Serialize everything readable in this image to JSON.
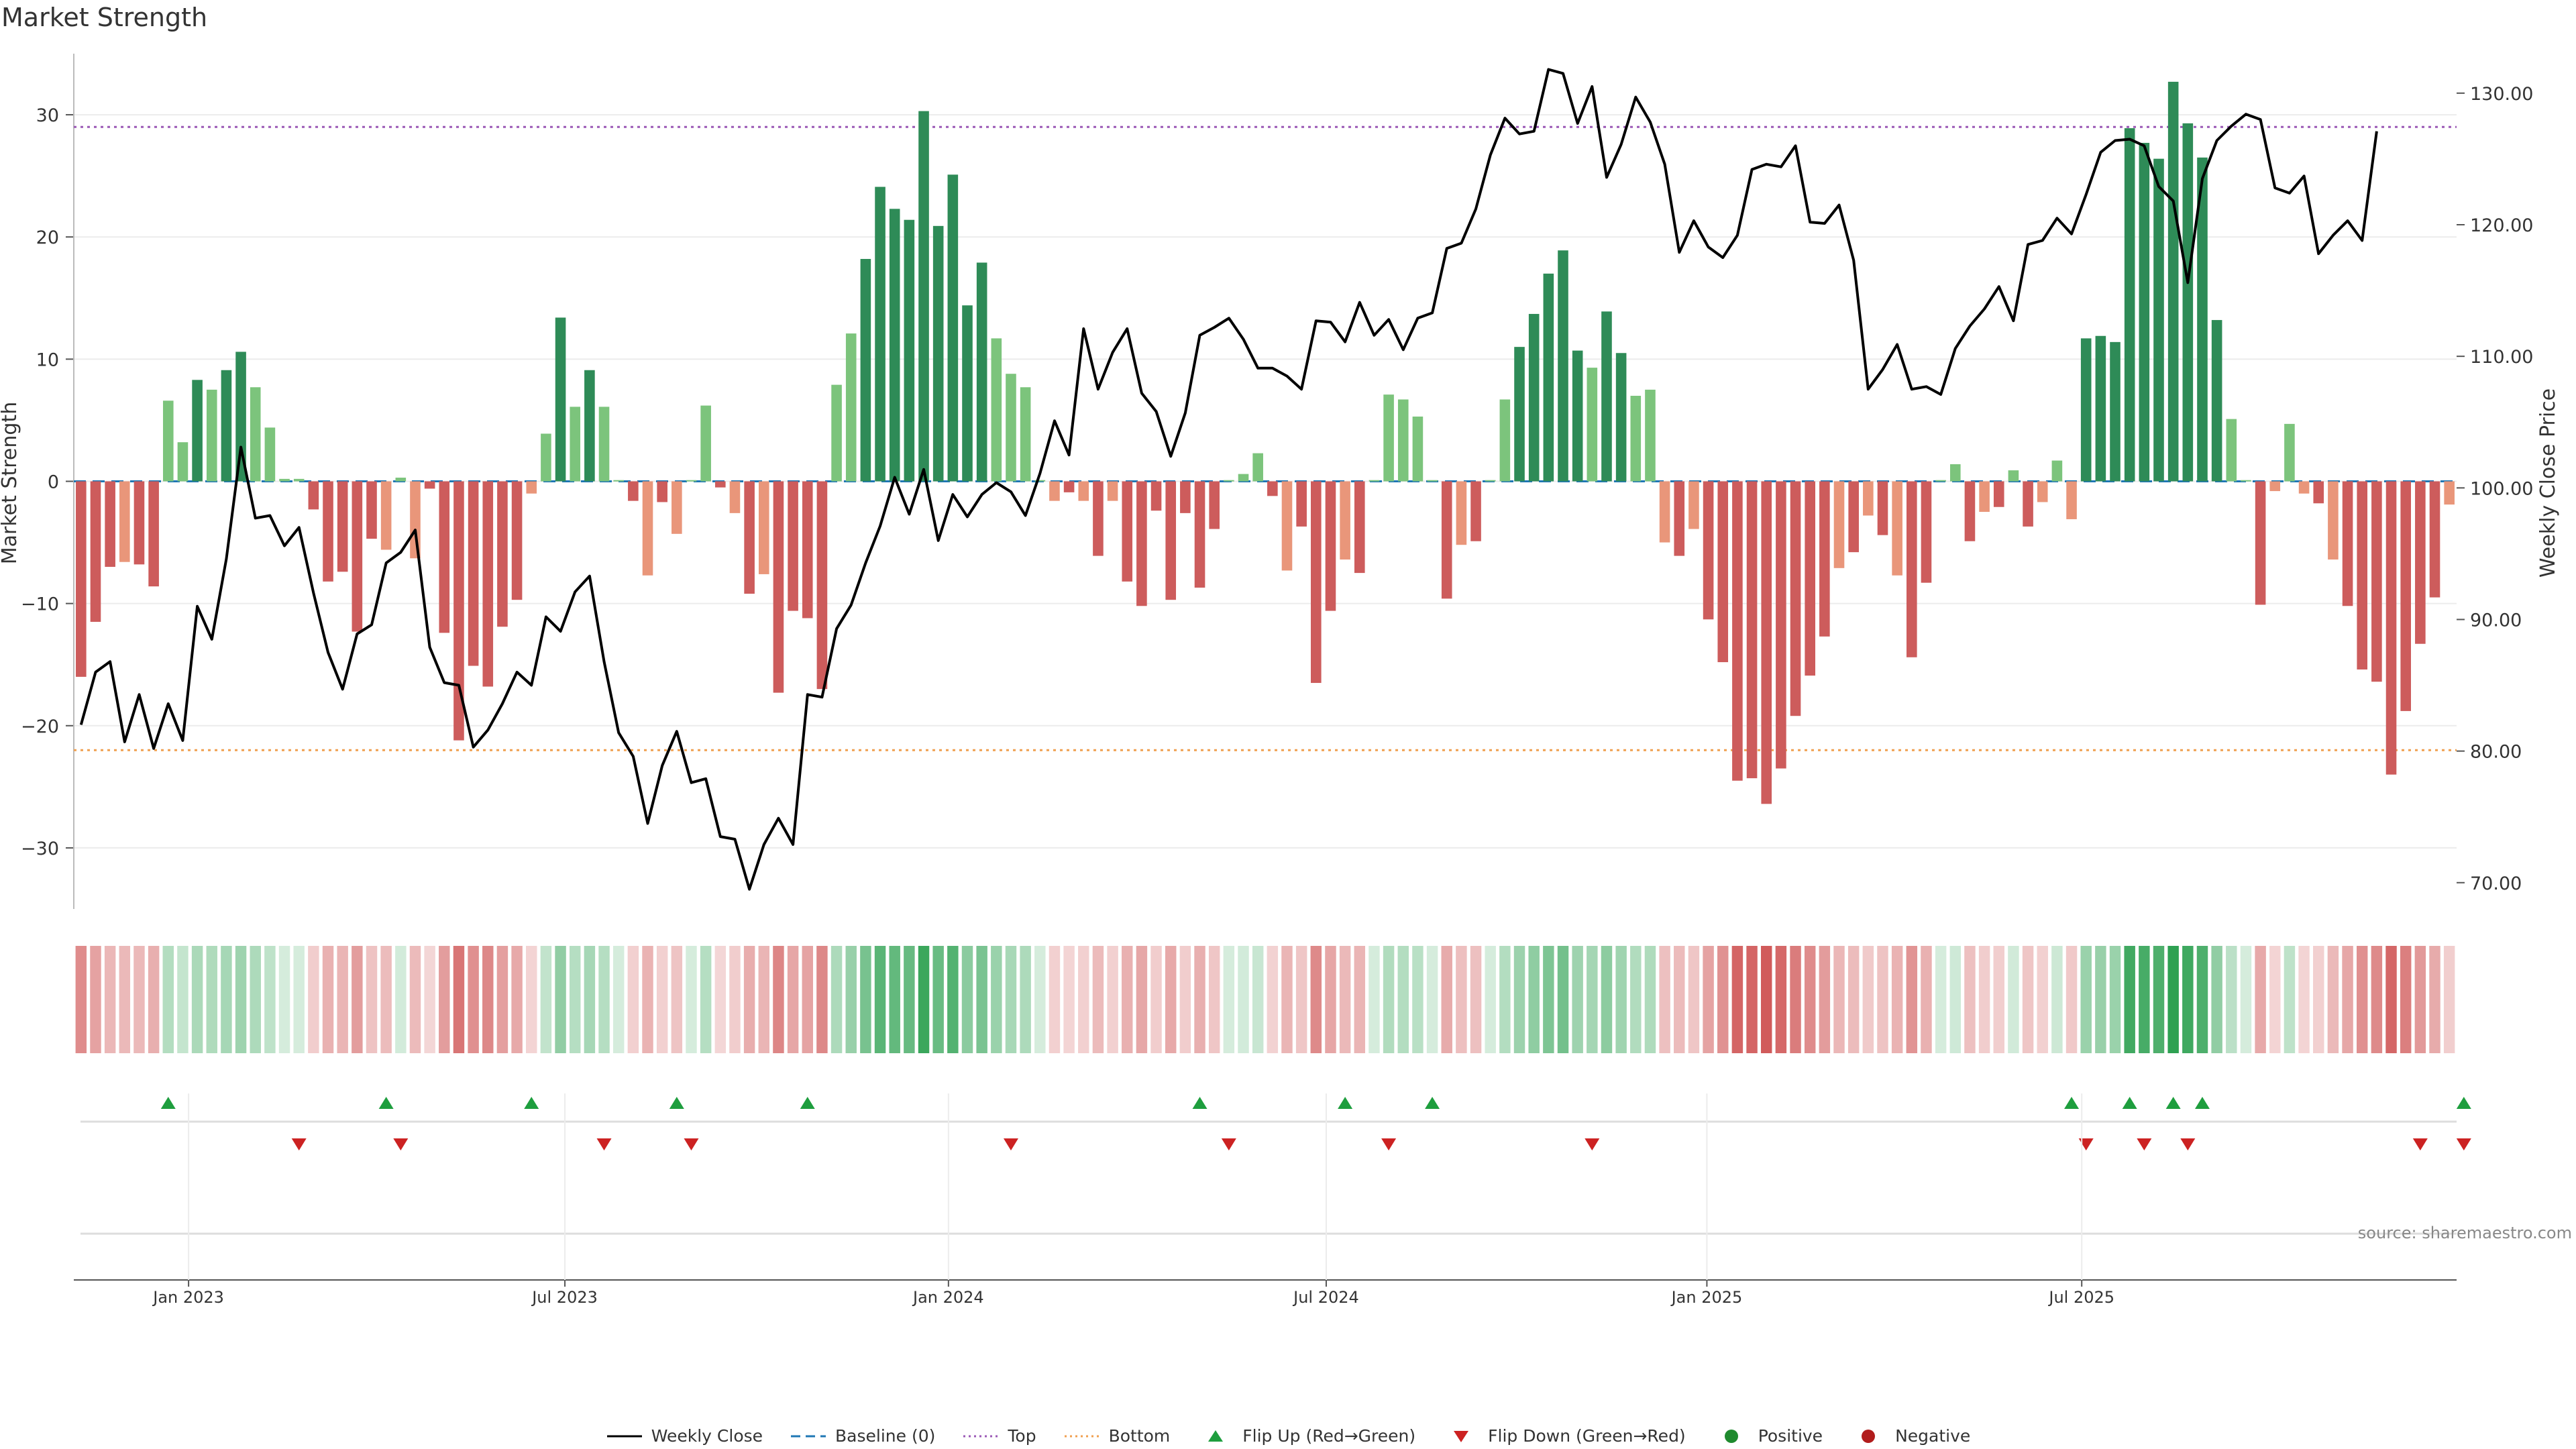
{
  "source_note": "source: sharemaestro.com",
  "legend": [
    {
      "label": "Weekly Close",
      "icon": "solid-line-icon",
      "color": "#000000"
    },
    {
      "label": "Baseline (0)",
      "icon": "dashed-line-icon",
      "color": "#1f77b4"
    },
    {
      "label": "Top",
      "icon": "dotted-line-icon",
      "color": "#9b59b6"
    },
    {
      "label": "Bottom",
      "icon": "dotted-line-icon",
      "color": "#f0a050"
    },
    {
      "label": "Flip Up (Red→Green)",
      "icon": "triangle-up-icon",
      "color": "#1e9e3e"
    },
    {
      "label": "Flip Down (Green→Red)",
      "icon": "triangle-down-icon",
      "color": "#cc2222"
    },
    {
      "label": "Positive",
      "icon": "circle-icon",
      "color": "#1f8a2e"
    },
    {
      "label": "Negative",
      "icon": "circle-icon",
      "color": "#b11c1c"
    }
  ],
  "colors": {
    "pos_strong": "#2e8b57",
    "pos_light": "#7cc47c",
    "neg_strong": "#cd5c5c",
    "neg_light": "#e9967a",
    "price_line": "#000000",
    "top_line": "#9b59b6",
    "bottom_line": "#f0a050",
    "baseline": "#1f77b4",
    "flip_up": "#1e9e3e",
    "flip_down": "#cc2222"
  },
  "chart_data": {
    "type": "bar",
    "title": "Market Strength",
    "ylabel": "Market Strength",
    "y2label": "Weekly Close Price",
    "ylim": [
      -35,
      35
    ],
    "y2lim": [
      68,
      133
    ],
    "yticks": [
      30,
      20,
      10,
      0,
      -10,
      -20,
      -30
    ],
    "yticklabels": [
      "30",
      "20",
      "10",
      "0",
      "−10",
      "−20",
      "−30"
    ],
    "y2ticks": [
      130,
      120,
      110,
      100,
      90,
      80,
      70
    ],
    "y2ticklabels": [
      "130.00",
      "120.00",
      "110.00",
      "100.00",
      "90.00",
      "80.00",
      "70.00"
    ],
    "top_level": 29,
    "bottom_level": -22,
    "x_start_label": "2022-11-14",
    "xtick_labels": [
      {
        "label": "Jan 2023",
        "week": 7.4
      },
      {
        "label": "Jul 2023",
        "week": 33.3
      },
      {
        "label": "Jan 2024",
        "week": 59.7
      },
      {
        "label": "Jul 2024",
        "week": 85.7
      },
      {
        "label": "Jan 2025",
        "week": 111.9
      },
      {
        "label": "Jul 2025",
        "week": 137.7
      }
    ],
    "strength": [
      -16,
      -11.5,
      -7,
      -6.6,
      -6.8,
      -8.6,
      6.6,
      3.2,
      8.3,
      7.5,
      9.1,
      10.6,
      7.7,
      4.4,
      0.2,
      0.2,
      -2.3,
      -8.2,
      -7.4,
      -12.3,
      -4.7,
      -5.6,
      0.3,
      -6.3,
      -0.6,
      -12.4,
      -21.2,
      -15.1,
      -16.8,
      -11.9,
      -9.7,
      -1,
      3.9,
      13.4,
      6.1,
      9.1,
      6.1,
      0.1,
      -1.6,
      -7.7,
      -1.7,
      -4.3,
      0.1,
      6.2,
      -0.5,
      -2.6,
      -9.2,
      -7.6,
      -17.3,
      -10.6,
      -11.2,
      -17,
      7.9,
      12.1,
      18.2,
      24.1,
      22.3,
      21.4,
      30.3,
      20.9,
      25.1,
      14.4,
      17.9,
      11.7,
      8.8,
      7.7,
      0.1,
      -1.6,
      -0.9,
      -1.6,
      -6.1,
      -1.6,
      -8.2,
      -10.2,
      -2.4,
      -9.7,
      -2.6,
      -8.7,
      -3.9,
      0.1,
      0.6,
      2.3,
      -1.2,
      -7.3,
      -3.7,
      -16.5,
      -10.6,
      -6.4,
      -7.5,
      0.1,
      7.1,
      6.7,
      5.3,
      0.1,
      -9.6,
      -5.2,
      -4.9,
      0.1,
      6.7,
      11,
      13.7,
      17,
      18.9,
      10.7,
      9.3,
      13.9,
      10.5,
      7,
      7.5,
      -5,
      -6.1,
      -3.9,
      -11.3,
      -14.8,
      -24.5,
      -24.3,
      -26.4,
      -23.5,
      -19.2,
      -15.9,
      -12.7,
      -7.1,
      -5.8,
      -2.8,
      -4.4,
      -7.7,
      -14.4,
      -8.3,
      0.1,
      1.4,
      -4.9,
      -2.5,
      -2.1,
      0.9,
      -3.7,
      -1.7,
      1.7,
      -3.1,
      11.7,
      11.9,
      11.4,
      28.9,
      27.7,
      26.4,
      32.7,
      29.3,
      26.5,
      13.2,
      5.1,
      0.1,
      -10.1,
      -0.8,
      4.7,
      -1,
      -1.8,
      -6.4,
      -10.2,
      -15.4,
      -16.4,
      -24,
      -18.8,
      -13.3,
      -9.5,
      -1.9
    ],
    "price": [
      82,
      86,
      86.8,
      80.7,
      84.3,
      80.2,
      83.6,
      80.8,
      91,
      88.5,
      94.6,
      103.1,
      97.7,
      97.9,
      95.6,
      97,
      92,
      87.5,
      84.7,
      88.9,
      89.6,
      94.3,
      95.1,
      96.8,
      87.9,
      85.2,
      85,
      80.3,
      81.6,
      83.6,
      86,
      85,
      90.2,
      89.1,
      92.1,
      93.3,
      86.8,
      81.4,
      79.6,
      74.5,
      78.9,
      81.5,
      77.6,
      77.9,
      73.5,
      73.3,
      69.5,
      72.9,
      74.9,
      72.9,
      84.3,
      84.1,
      89.3,
      91.1,
      94.3,
      97.1,
      100.8,
      98,
      101.4,
      96,
      99.5,
      97.8,
      99.5,
      100.4,
      99.7,
      97.9,
      101.1,
      105.1,
      102.5,
      112.1,
      107.5,
      110.3,
      112.1,
      107.2,
      105.8,
      102.4,
      105.7,
      111.6,
      112.2,
      112.9,
      111.3,
      109.1,
      109.1,
      108.5,
      107.5,
      112.7,
      112.6,
      111.1,
      114.1,
      111.6,
      112.8,
      110.5,
      112.9,
      113.3,
      118.2,
      118.6,
      121.2,
      125.3,
      128.1,
      126.9,
      127.1,
      131.8,
      131.5,
      127.7,
      130.5,
      123.6,
      126.1,
      129.7,
      127.8,
      124.6,
      117.9,
      120.3,
      118.3,
      117.5,
      119.2,
      124.2,
      124.6,
      124.4,
      126,
      120.2,
      120.1,
      121.5,
      117.3,
      107.5,
      109,
      110.9,
      107.5,
      107.7,
      107.1,
      110.6,
      112.3,
      113.6,
      115.3,
      112.7,
      118.5,
      118.8,
      120.5,
      119.3,
      122.3,
      125.5,
      126.4,
      126.5,
      126,
      122.9,
      121.8,
      115.6,
      123.5,
      126.4,
      127.5,
      128.4,
      128,
      122.8,
      122.4,
      123.7,
      117.8,
      119.2,
      120.3,
      118.8,
      127.1
    ],
    "flip_up_weeks": [
      6,
      21,
      31,
      41,
      50,
      77,
      87,
      93,
      137,
      141,
      144,
      146,
      164
    ],
    "flip_down_weeks": [
      15,
      22,
      36,
      42,
      64,
      79,
      90,
      104,
      138,
      142,
      145,
      161,
      164
    ]
  }
}
